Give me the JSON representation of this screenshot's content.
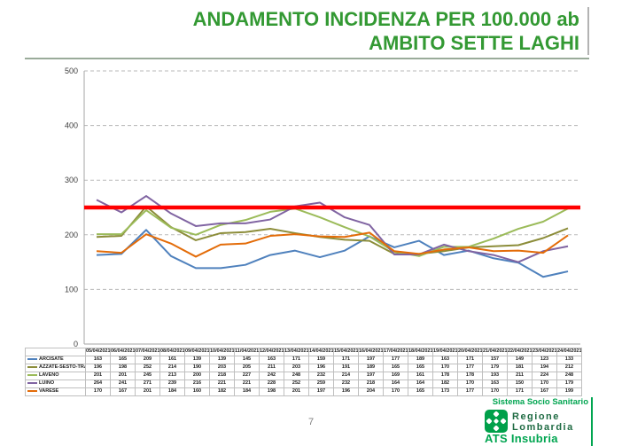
{
  "slide": {
    "title_line1": "ANDAMENTO INCIDENZA PER 100.000 ab",
    "title_line2": "AMBITO SETTE LAGHI",
    "page_number": "7"
  },
  "footer": {
    "system_label": "Sistema Socio Sanitario",
    "logo_text_line1": "Regione",
    "logo_text_line2": "Lombardia",
    "org_label": "ATS Insubria",
    "green": "#00A550",
    "dark_green": "#1F6B43",
    "logo_green": "#00A04A"
  },
  "colors": {
    "title_green": "#339933",
    "grid_gray": "#bababa",
    "axis_gray": "#a6a6a6",
    "table_border": "#bfbfbf",
    "tick_label": "#404040"
  },
  "chart_data": {
    "type": "line",
    "title": "",
    "xlabel": "",
    "ylabel": "",
    "ylim": [
      0,
      500
    ],
    "yticks": [
      0,
      100,
      200,
      300,
      400,
      500
    ],
    "grid": "horizontal-dashed",
    "legend_position": "table-first-column",
    "threshold": {
      "value": 250,
      "color": "#FF0000"
    },
    "x_dates": [
      "05/04/2021",
      "06/04/2021",
      "07/04/2021",
      "08/04/2021",
      "09/04/2021",
      "10/04/2021",
      "11/04/2021",
      "12/04/2021",
      "13/04/2021",
      "14/04/2021",
      "15/04/2021",
      "16/04/2021",
      "17/04/2021",
      "18/04/2021",
      "19/04/2021",
      "20/04/2021",
      "21/04/2021",
      "22/04/2021",
      "23/04/2021",
      "24/04/2021"
    ],
    "series": [
      {
        "name": "ARCISATE",
        "color": "#4F81BD",
        "values": [
          163,
          165,
          209,
          161,
          139,
          139,
          145,
          163,
          171,
          159,
          171,
          197,
          177,
          189,
          163,
          171,
          157,
          149,
          123,
          133
        ]
      },
      {
        "name": "AZZATE-SESTO-TRADATE",
        "color": "#8C8D3A",
        "values": [
          196,
          198,
          252,
          214,
          190,
          203,
          205,
          211,
          203,
          196,
          191,
          189,
          165,
          165,
          170,
          177,
          179,
          181,
          194,
          212
        ]
      },
      {
        "name": "LAVENO",
        "color": "#9BBB59",
        "values": [
          201,
          201,
          245,
          213,
          200,
          218,
          227,
          242,
          248,
          232,
          214,
          197,
          169,
          161,
          178,
          178,
          193,
          211,
          224,
          248
        ]
      },
      {
        "name": "LUINO",
        "color": "#8064A2",
        "values": [
          264,
          241,
          271,
          239,
          216,
          221,
          221,
          228,
          252,
          259,
          232,
          218,
          164,
          164,
          182,
          170,
          163,
          150,
          170,
          179
        ]
      },
      {
        "name": "VARESE",
        "color": "#E36C09",
        "values": [
          170,
          167,
          201,
          184,
          160,
          182,
          184,
          198,
          201,
          197,
          196,
          204,
          170,
          165,
          173,
          177,
          170,
          171,
          167,
          199
        ]
      }
    ]
  }
}
